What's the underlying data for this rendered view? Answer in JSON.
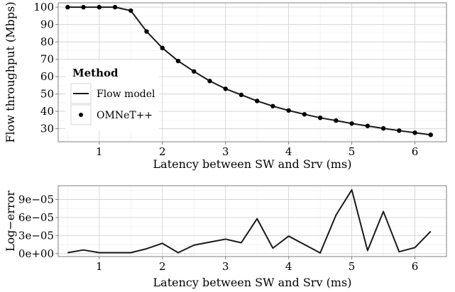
{
  "chart_data": [
    {
      "type": "line",
      "title": "",
      "xlabel": "Latency between SW and Srv (ms)",
      "ylabel": "Flow throughput (Mbps)",
      "xlim": [
        0.35,
        6.5
      ],
      "ylim": [
        22.5,
        102.5
      ],
      "xticks": [
        1,
        2,
        3,
        4,
        5,
        6
      ],
      "yticks": [
        30,
        40,
        50,
        60,
        70,
        80,
        90,
        100
      ],
      "grid": true,
      "legend": {
        "title": "Method",
        "placement": "left",
        "entries": [
          "Flow model",
          "OMNeT++"
        ]
      },
      "x": [
        0.5,
        0.75,
        1.0,
        1.25,
        1.5,
        1.75,
        2.0,
        2.25,
        2.5,
        2.75,
        3.0,
        3.25,
        3.5,
        3.75,
        4.0,
        4.25,
        4.5,
        4.75,
        5.0,
        5.25,
        5.5,
        5.75,
        6.0,
        6.25
      ],
      "series": [
        {
          "name": "Flow model",
          "values": [
            100,
            100,
            100,
            100,
            98,
            86,
            76.5,
            69,
            63,
            57.5,
            53,
            49.5,
            46,
            43,
            40.5,
            38.3,
            36.3,
            34.7,
            33,
            31.6,
            30.2,
            28.9,
            27.7,
            26.5
          ]
        },
        {
          "name": "OMNeT++",
          "values": [
            100,
            100,
            100,
            100,
            98,
            86,
            76.5,
            69,
            63,
            57.5,
            53,
            49.5,
            46,
            43,
            40.5,
            38.3,
            36.3,
            34.7,
            33,
            31.6,
            30.2,
            28.9,
            27.7,
            26.5
          ]
        }
      ]
    },
    {
      "type": "line",
      "title": "",
      "xlabel": "Latency between SW and Srv (ms)",
      "ylabel": "Log−error",
      "xlim": [
        0.35,
        6.5
      ],
      "ylim": [
        -5e-06,
        0.000113
      ],
      "xticks": [
        1,
        2,
        3,
        4,
        5,
        6
      ],
      "yticks": [
        0,
        3e-05,
        6e-05,
        9e-05
      ],
      "ytick_labels": [
        "0e+00",
        "3e−05",
        "6e−05",
        "9e−05"
      ],
      "grid": true,
      "x": [
        0.5,
        0.75,
        1.0,
        1.25,
        1.5,
        1.75,
        2.0,
        2.25,
        2.5,
        2.75,
        3.0,
        3.25,
        3.5,
        3.75,
        4.0,
        4.25,
        4.5,
        4.75,
        5.0,
        5.25,
        5.5,
        5.75,
        6.0,
        6.25
      ],
      "series": [
        {
          "values": [
            1.5e-06,
            6e-06,
            1.5e-06,
            1.5e-06,
            1.5e-06,
            8e-06,
            1.7e-05,
            1.5e-06,
            1.4e-05,
            1.9e-05,
            2.4e-05,
            1.8e-05,
            5.8e-05,
            9e-06,
            2.9e-05,
            1.5e-05,
            1e-06,
            6.4e-05,
            0.000106,
            5e-06,
            7e-05,
            3e-06,
            1e-05,
            3.7e-05
          ]
        }
      ]
    }
  ]
}
